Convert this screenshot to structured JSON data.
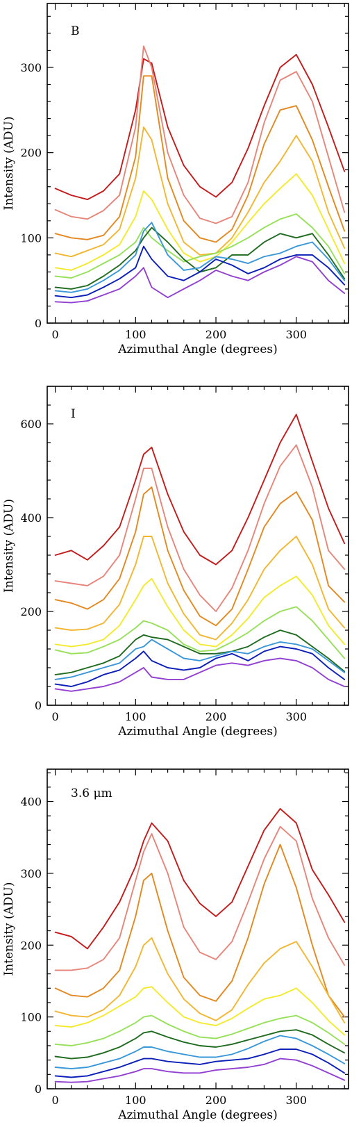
{
  "colors": [
    "#c41a1a",
    "#e8857a",
    "#e3891f",
    "#f2b630",
    "#f4ea2c",
    "#97e05a",
    "#1f6b1f",
    "#3a98d8",
    "#0b1fb8",
    "#9240d1"
  ],
  "chart_data": [
    {
      "type": "line",
      "panel_label": "B",
      "xlabel": "Azimuthal Angle (degrees)",
      "ylabel": "Intensity (ADU)",
      "xlim": [
        -10,
        365
      ],
      "ylim": [
        0,
        375
      ],
      "xticks": [
        0,
        100,
        200,
        300
      ],
      "yticks": [
        0,
        100,
        200,
        300
      ],
      "x": [
        0,
        20,
        40,
        60,
        80,
        100,
        110,
        120,
        140,
        160,
        180,
        200,
        220,
        240,
        260,
        280,
        300,
        320,
        340,
        360
      ],
      "series": [
        {
          "values": [
            158,
            150,
            145,
            155,
            175,
            250,
            310,
            305,
            230,
            185,
            160,
            148,
            165,
            205,
            255,
            300,
            315,
            280,
            230,
            178
          ]
        },
        {
          "values": [
            133,
            125,
            122,
            132,
            150,
            230,
            325,
            300,
            200,
            150,
            123,
            117,
            125,
            165,
            235,
            285,
            295,
            260,
            195,
            130
          ]
        },
        {
          "values": [
            105,
            100,
            98,
            103,
            125,
            195,
            290,
            290,
            170,
            120,
            100,
            95,
            110,
            150,
            210,
            250,
            255,
            215,
            160,
            108
          ]
        },
        {
          "values": [
            82,
            78,
            85,
            92,
            110,
            170,
            230,
            215,
            140,
            95,
            80,
            82,
            100,
            130,
            165,
            190,
            220,
            190,
            130,
            88
          ]
        },
        {
          "values": [
            65,
            62,
            70,
            80,
            92,
            125,
            155,
            145,
            110,
            82,
            72,
            78,
            95,
            118,
            140,
            158,
            175,
            150,
            110,
            70
          ]
        },
        {
          "values": [
            55,
            53,
            60,
            70,
            80,
            95,
            112,
            100,
            85,
            72,
            78,
            82,
            90,
            100,
            112,
            122,
            128,
            112,
            90,
            58
          ]
        },
        {
          "values": [
            42,
            40,
            44,
            55,
            68,
            85,
            100,
            112,
            95,
            75,
            60,
            65,
            80,
            80,
            95,
            105,
            100,
            105,
            80,
            52
          ]
        },
        {
          "values": [
            38,
            36,
            40,
            50,
            62,
            80,
            108,
            118,
            80,
            62,
            65,
            78,
            75,
            70,
            78,
            82,
            90,
            95,
            75,
            50
          ]
        },
        {
          "values": [
            32,
            30,
            33,
            42,
            52,
            65,
            90,
            75,
            55,
            50,
            60,
            75,
            68,
            58,
            65,
            75,
            80,
            80,
            65,
            45
          ]
        },
        {
          "values": [
            25,
            24,
            26,
            33,
            40,
            55,
            65,
            42,
            30,
            40,
            50,
            62,
            55,
            50,
            60,
            68,
            78,
            72,
            50,
            35
          ]
        }
      ]
    },
    {
      "type": "line",
      "panel_label": "I",
      "xlabel": "Azimuthal Angle (degrees)",
      "ylabel": "Intensity (ADU)",
      "xlim": [
        -10,
        365
      ],
      "ylim": [
        0,
        680
      ],
      "xticks": [
        0,
        100,
        200,
        300
      ],
      "yticks": [
        0,
        200,
        400,
        600
      ],
      "x": [
        0,
        20,
        40,
        60,
        80,
        100,
        110,
        120,
        140,
        160,
        180,
        200,
        220,
        240,
        260,
        280,
        300,
        320,
        340,
        360
      ],
      "series": [
        {
          "values": [
            320,
            330,
            310,
            340,
            380,
            480,
            535,
            550,
            450,
            370,
            320,
            300,
            330,
            400,
            480,
            560,
            620,
            520,
            420,
            345
          ]
        },
        {
          "values": [
            265,
            260,
            255,
            275,
            320,
            440,
            505,
            505,
            380,
            290,
            235,
            200,
            250,
            330,
            430,
            510,
            555,
            465,
            330,
            290
          ]
        },
        {
          "values": [
            225,
            218,
            205,
            225,
            270,
            370,
            450,
            465,
            330,
            245,
            190,
            170,
            205,
            290,
            380,
            430,
            455,
            395,
            255,
            220
          ]
        },
        {
          "values": [
            165,
            160,
            162,
            175,
            215,
            300,
            360,
            360,
            260,
            195,
            150,
            140,
            175,
            225,
            290,
            330,
            360,
            300,
            205,
            165
          ]
        },
        {
          "values": [
            130,
            125,
            130,
            140,
            170,
            225,
            255,
            270,
            210,
            160,
            130,
            125,
            150,
            185,
            230,
            255,
            275,
            235,
            170,
            130
          ]
        },
        {
          "values": [
            118,
            110,
            112,
            125,
            140,
            165,
            180,
            175,
            160,
            130,
            115,
            118,
            135,
            155,
            180,
            200,
            210,
            180,
            140,
            100
          ]
        },
        {
          "values": [
            65,
            70,
            80,
            90,
            105,
            140,
            150,
            145,
            140,
            125,
            110,
            110,
            115,
            125,
            145,
            160,
            150,
            125,
            100,
            72
          ]
        },
        {
          "values": [
            55,
            60,
            70,
            80,
            90,
            120,
            125,
            140,
            120,
            100,
            95,
            105,
            115,
            110,
            125,
            135,
            130,
            120,
            95,
            70
          ]
        },
        {
          "values": [
            45,
            40,
            50,
            65,
            75,
            100,
            115,
            95,
            80,
            75,
            80,
            100,
            110,
            95,
            115,
            125,
            120,
            110,
            80,
            55
          ]
        },
        {
          "values": [
            35,
            30,
            35,
            40,
            50,
            70,
            80,
            60,
            55,
            55,
            70,
            85,
            90,
            85,
            95,
            100,
            95,
            80,
            55,
            40
          ]
        }
      ]
    },
    {
      "type": "line",
      "panel_label": "3.6 μm",
      "xlabel": "Azimuthal Angle (degrees)",
      "ylabel": "Intensity (ADU)",
      "xlim": [
        -10,
        365
      ],
      "ylim": [
        0,
        445
      ],
      "xticks": [
        0,
        100,
        200,
        300
      ],
      "yticks": [
        0,
        100,
        200,
        300,
        400
      ],
      "x": [
        0,
        20,
        40,
        60,
        80,
        100,
        110,
        120,
        140,
        160,
        180,
        200,
        220,
        240,
        260,
        280,
        300,
        320,
        340,
        360
      ],
      "series": [
        {
          "values": [
            218,
            212,
            195,
            225,
            260,
            310,
            345,
            370,
            345,
            290,
            258,
            240,
            260,
            310,
            360,
            390,
            370,
            305,
            270,
            232
          ]
        },
        {
          "values": [
            165,
            165,
            168,
            180,
            210,
            290,
            330,
            355,
            300,
            225,
            190,
            180,
            205,
            260,
            320,
            365,
            345,
            265,
            210,
            172
          ]
        },
        {
          "values": [
            140,
            130,
            128,
            140,
            165,
            240,
            290,
            300,
            220,
            155,
            130,
            122,
            150,
            210,
            285,
            340,
            280,
            200,
            130,
            100
          ]
        },
        {
          "values": [
            108,
            102,
            100,
            110,
            130,
            170,
            200,
            210,
            160,
            125,
            105,
            95,
            110,
            145,
            175,
            195,
            205,
            170,
            130,
            92
          ]
        },
        {
          "values": [
            88,
            86,
            92,
            102,
            115,
            128,
            140,
            142,
            120,
            100,
            92,
            88,
            98,
            112,
            125,
            130,
            140,
            120,
            95,
            75
          ]
        },
        {
          "values": [
            62,
            60,
            64,
            70,
            80,
            92,
            100,
            102,
            90,
            80,
            72,
            70,
            76,
            84,
            92,
            98,
            102,
            92,
            78,
            62
          ]
        },
        {
          "values": [
            45,
            42,
            44,
            50,
            58,
            70,
            78,
            80,
            72,
            65,
            60,
            58,
            62,
            68,
            74,
            80,
            82,
            75,
            62,
            50
          ]
        },
        {
          "values": [
            30,
            28,
            30,
            36,
            42,
            52,
            58,
            58,
            52,
            48,
            44,
            44,
            48,
            56,
            66,
            74,
            70,
            60,
            48,
            35
          ]
        },
        {
          "values": [
            18,
            16,
            18,
            24,
            30,
            38,
            42,
            42,
            38,
            36,
            34,
            38,
            40,
            42,
            48,
            55,
            55,
            48,
            36,
            22
          ]
        },
        {
          "values": [
            10,
            9,
            10,
            14,
            18,
            24,
            28,
            28,
            24,
            22,
            22,
            26,
            28,
            30,
            34,
            42,
            40,
            32,
            22,
            12
          ]
        }
      ]
    }
  ]
}
